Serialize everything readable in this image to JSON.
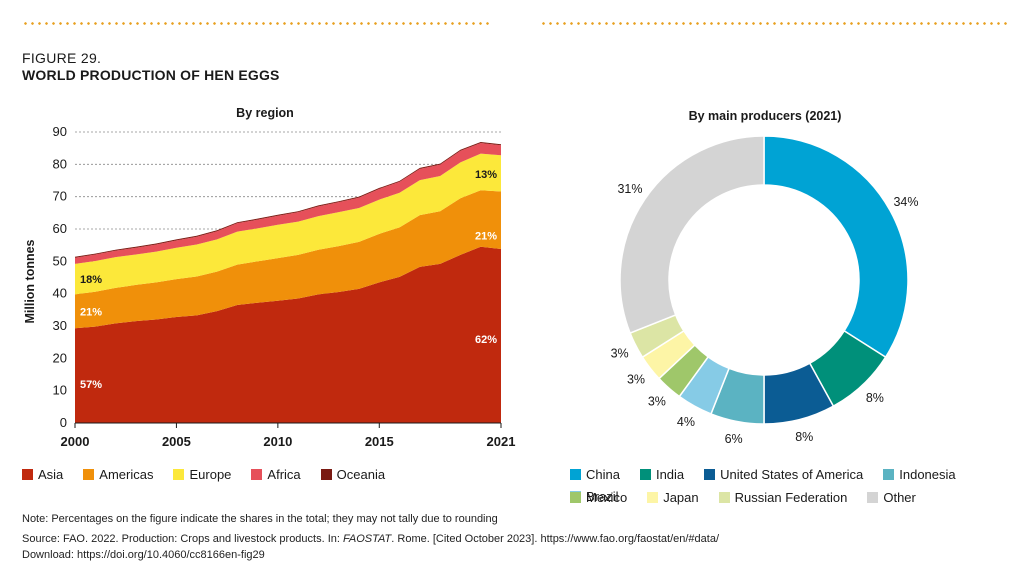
{
  "figure": {
    "label": "FIGURE 29.",
    "title": "WORLD PRODUCTION OF HEN EGGS"
  },
  "chart_data": [
    {
      "type": "area",
      "title": "By region",
      "xlabel": "",
      "ylabel": "Million tonnes",
      "stacked": true,
      "xlim": [
        2000,
        2021
      ],
      "ylim": [
        0,
        90
      ],
      "yticks": [
        0,
        10,
        20,
        30,
        40,
        50,
        60,
        70,
        80,
        90
      ],
      "xticks": [
        2000,
        2005,
        2010,
        2015,
        2021
      ],
      "grid": "horizontal dotted",
      "legend": "bottom",
      "x": [
        2000,
        2001,
        2002,
        2003,
        2004,
        2005,
        2006,
        2007,
        2008,
        2009,
        2010,
        2011,
        2012,
        2013,
        2014,
        2015,
        2016,
        2017,
        2018,
        2019,
        2020,
        2021
      ],
      "series": [
        {
          "name": "Asia",
          "color": "#c0290e",
          "values": [
            29.3,
            29.8,
            30.8,
            31.5,
            32.0,
            32.8,
            33.3,
            34.6,
            36.5,
            37.2,
            37.8,
            38.5,
            39.8,
            40.5,
            41.5,
            43.5,
            45.2,
            48.3,
            49.2,
            52.0,
            54.5,
            53.8
          ]
        },
        {
          "name": "Americas",
          "color": "#f0900a",
          "values": [
            10.5,
            10.8,
            11.0,
            11.2,
            11.5,
            11.7,
            12.0,
            12.2,
            12.5,
            12.8,
            13.2,
            13.5,
            13.8,
            14.2,
            14.5,
            15.0,
            15.3,
            16.0,
            16.3,
            17.5,
            17.5,
            17.8
          ]
        },
        {
          "name": "Europe",
          "color": "#fce83a",
          "values": [
            9.4,
            9.5,
            9.5,
            9.4,
            9.5,
            9.7,
            9.9,
            10.0,
            10.2,
            10.2,
            10.3,
            10.3,
            10.4,
            10.5,
            10.5,
            10.6,
            10.7,
            10.8,
            10.9,
            11.1,
            11.3,
            11.2
          ]
        },
        {
          "name": "Africa",
          "color": "#e6505a",
          "values": [
            1.9,
            2.0,
            2.0,
            2.1,
            2.2,
            2.3,
            2.4,
            2.5,
            2.6,
            2.7,
            2.8,
            2.9,
            3.0,
            3.1,
            3.2,
            3.3,
            3.4,
            3.5,
            3.5,
            3.6,
            3.3,
            3.1
          ]
        },
        {
          "name": "Oceania",
          "color": "#7a1a12",
          "values": [
            0.3,
            0.3,
            0.3,
            0.3,
            0.3,
            0.3,
            0.3,
            0.3,
            0.3,
            0.3,
            0.3,
            0.3,
            0.3,
            0.3,
            0.3,
            0.3,
            0.3,
            0.3,
            0.3,
            0.3,
            0.3,
            0.3
          ]
        }
      ],
      "annotations": [
        {
          "text": "57%",
          "x": 2000,
          "y": 12,
          "color": "#ffffff"
        },
        {
          "text": "21%",
          "x": 2000,
          "y": 34.5,
          "color": "#ffffff"
        },
        {
          "text": "18%",
          "x": 2000,
          "y": 44.5,
          "color": "#1a1a1a"
        },
        {
          "text": "62%",
          "x": 2021,
          "y": 26,
          "color": "#ffffff"
        },
        {
          "text": "21%",
          "x": 2021,
          "y": 58,
          "color": "#ffffff"
        },
        {
          "text": "13%",
          "x": 2021,
          "y": 77,
          "color": "#1a1a1a"
        }
      ]
    },
    {
      "type": "pie",
      "donut": true,
      "title": "By main producers (2021)",
      "legend": "bottom",
      "slices": [
        {
          "name": "China",
          "value": 34,
          "label": "34%",
          "color": "#00a3d4"
        },
        {
          "name": "India",
          "value": 8,
          "label": "8%",
          "color": "#00907a"
        },
        {
          "name": "United States of America",
          "value": 8,
          "label": "8%",
          "color": "#0b5c94"
        },
        {
          "name": "Indonesia",
          "value": 6,
          "label": "6%",
          "color": "#5bb3c2"
        },
        {
          "name": "Brazil",
          "value": 4,
          "label": "4%",
          "color": "#86cbe6"
        },
        {
          "name": "Mexico",
          "value": 3,
          "label": "3%",
          "color": "#9fc76a"
        },
        {
          "name": "Japan",
          "value": 3,
          "label": "3%",
          "color": "#fdf5a6"
        },
        {
          "name": "Russian Federation",
          "value": 3,
          "label": "3%",
          "color": "#dce5a5"
        },
        {
          "name": "Other",
          "value": 31,
          "label": "31%",
          "color": "#d4d4d4"
        }
      ]
    }
  ],
  "legend_area": {
    "items": [
      {
        "name": "Asia",
        "color": "#c0290e"
      },
      {
        "name": "Americas",
        "color": "#f0900a"
      },
      {
        "name": "Europe",
        "color": "#fce83a"
      },
      {
        "name": "Africa",
        "color": "#e6505a"
      },
      {
        "name": "Oceania",
        "color": "#7a1a12"
      }
    ]
  },
  "legend_pie": {
    "row1": [
      {
        "name": "China",
        "color": "#00a3d4"
      },
      {
        "name": "India",
        "color": "#00907a"
      },
      {
        "name": "United States of America",
        "color": "#0b5c94"
      },
      {
        "name": "Indonesia",
        "color": "#5bb3c2"
      },
      {
        "name": "Brazil",
        "color": "#86cbe6"
      }
    ],
    "row2": [
      {
        "name": "Mexico",
        "color": "#9fc76a"
      },
      {
        "name": "Japan",
        "color": "#fdf5a6"
      },
      {
        "name": "Russian Federation",
        "color": "#dce5a5"
      },
      {
        "name": "Other",
        "color": "#d4d4d4"
      }
    ]
  },
  "notes": {
    "note": "Note: Percentages on the figure indicate the shares in the total; they may not tally due to rounding",
    "source_pre": "Source: FAO. 2022. Production: Crops and livestock products. In: ",
    "source_italic": "FAOSTAT",
    "source_post": ". Rome. [Cited October 2023]. https://www.fao.org/faostat/en/#data/",
    "download": "Download: https://doi.org/10.4060/cc8166en-fig29"
  }
}
